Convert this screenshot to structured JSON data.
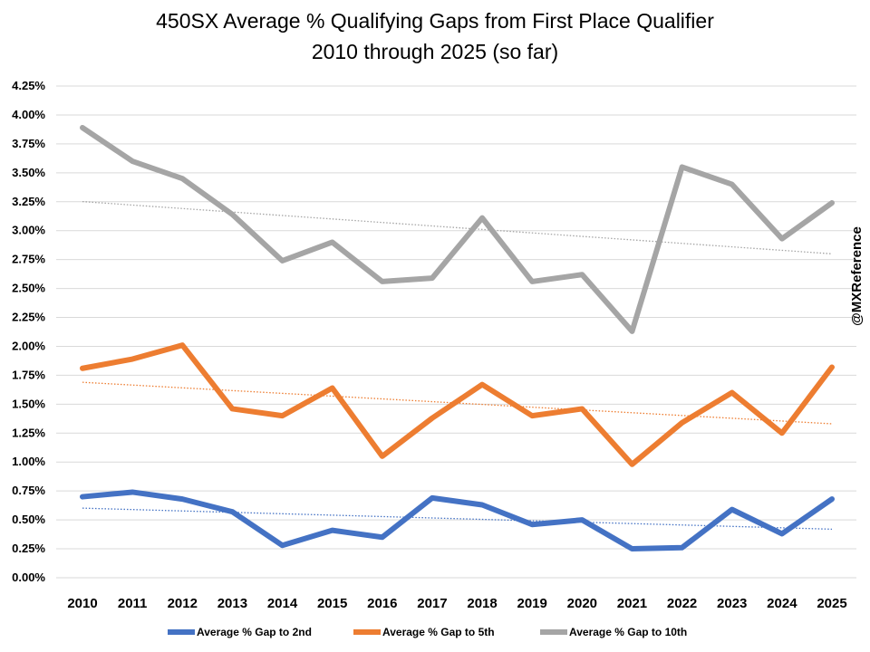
{
  "chart_data": {
    "type": "line",
    "title": "450SX Average % Qualifying Gaps from First Place Qualifier",
    "subtitle": "2010 through 2025 (so far)",
    "xlabel": "",
    "ylabel": "",
    "x": [
      "2010",
      "2011",
      "2012",
      "2013",
      "2014",
      "2015",
      "2016",
      "2017",
      "2018",
      "2019",
      "2020",
      "2021",
      "2022",
      "2023",
      "2024",
      "2025"
    ],
    "ylim": [
      0,
      4.25
    ],
    "yticks": [
      "0.00%",
      "0.25%",
      "0.50%",
      "0.75%",
      "1.00%",
      "1.25%",
      "1.50%",
      "1.75%",
      "2.00%",
      "2.25%",
      "2.50%",
      "2.75%",
      "3.00%",
      "3.25%",
      "3.50%",
      "3.75%",
      "4.00%",
      "4.25%"
    ],
    "grid": true,
    "legend_position": "bottom",
    "trendlines": "linear dotted per series",
    "watermark": "@MXReference",
    "series": [
      {
        "name": "Average % Gap to 2nd",
        "color": "#4472C4",
        "values": [
          0.7,
          0.74,
          0.68,
          0.57,
          0.28,
          0.41,
          0.35,
          0.69,
          0.63,
          0.46,
          0.5,
          0.25,
          0.26,
          0.59,
          0.38,
          0.68
        ]
      },
      {
        "name": "Average % Gap to 5th",
        "color": "#ED7D31",
        "values": [
          1.81,
          1.89,
          2.01,
          1.46,
          1.4,
          1.64,
          1.05,
          1.38,
          1.67,
          1.4,
          1.46,
          0.98,
          1.34,
          1.6,
          1.25,
          1.82
        ]
      },
      {
        "name": "Average % Gap to 10th",
        "color": "#A5A5A5",
        "values": [
          3.89,
          3.6,
          3.45,
          3.14,
          2.74,
          2.9,
          2.56,
          2.59,
          3.11,
          2.56,
          2.62,
          2.13,
          3.55,
          3.4,
          2.93,
          3.24
        ]
      }
    ]
  }
}
